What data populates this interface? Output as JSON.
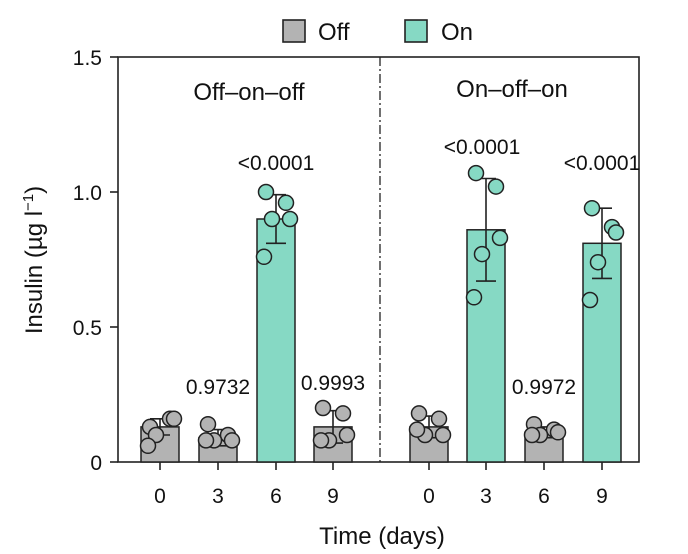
{
  "chart_data": {
    "type": "bar",
    "ylabel": "Insulin (µg l",
    "ylabel_superscript": "−1",
    "ylabel_close": ")",
    "xlabel": "Time (days)",
    "ylim": [
      0,
      1.5
    ],
    "yticks": [
      {
        "value": 0,
        "label": "0"
      },
      {
        "value": 0.5,
        "label": "0.5"
      },
      {
        "value": 1.0,
        "label": "1.0"
      },
      {
        "value": 1.5,
        "label": "1.5"
      }
    ],
    "grid": false,
    "legend": {
      "position": "top-center",
      "entries": [
        {
          "name": "Off",
          "color": "#b3b3b3"
        },
        {
          "name": "On",
          "color": "#86d9c4"
        }
      ]
    },
    "colors": {
      "Off": "#b3b3b3",
      "On": "#86d9c4"
    },
    "panels": [
      {
        "title": "Off–on–off",
        "bars": [
          {
            "day": "0",
            "state": "Off",
            "mean": 0.13,
            "sd": 0.03,
            "points": [
              0.13,
              0.16,
              0.16,
              0.1,
              0.06
            ],
            "p_label": ""
          },
          {
            "day": "3",
            "state": "Off",
            "mean": 0.09,
            "sd": 0.03,
            "points": [
              0.14,
              0.1,
              0.08,
              0.08,
              0.08
            ],
            "p_label": "0.9732"
          },
          {
            "day": "6",
            "state": "On",
            "mean": 0.9,
            "sd": 0.09,
            "points": [
              1.0,
              0.96,
              0.9,
              0.9,
              0.76
            ],
            "p_label": "<0.0001"
          },
          {
            "day": "9",
            "state": "Off",
            "mean": 0.13,
            "sd": 0.06,
            "points": [
              0.2,
              0.18,
              0.1,
              0.08,
              0.08
            ],
            "p_label": "0.9993"
          }
        ]
      },
      {
        "title": "On–off–on",
        "bars": [
          {
            "day": "0",
            "state": "Off",
            "mean": 0.13,
            "sd": 0.04,
            "points": [
              0.18,
              0.16,
              0.1,
              0.1,
              0.12
            ],
            "p_label": ""
          },
          {
            "day": "3",
            "state": "On",
            "mean": 0.86,
            "sd": 0.19,
            "points": [
              1.07,
              1.02,
              0.83,
              0.77,
              0.61
            ],
            "p_label": "<0.0001"
          },
          {
            "day": "6",
            "state": "Off",
            "mean": 0.11,
            "sd": 0.02,
            "points": [
              0.14,
              0.12,
              0.11,
              0.1,
              0.1
            ],
            "p_label": "0.9972"
          },
          {
            "day": "9",
            "state": "On",
            "mean": 0.81,
            "sd": 0.13,
            "points": [
              0.94,
              0.87,
              0.85,
              0.74,
              0.6
            ],
            "p_label": "<0.0001"
          }
        ]
      }
    ]
  }
}
